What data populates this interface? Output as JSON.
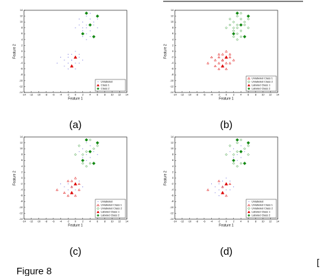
{
  "caption": "Figure 8",
  "side_mark": "[",
  "chart_data": [
    {
      "type": "scatter",
      "label": "(a)",
      "xlabel": "Feature 1",
      "ylabel": "Feature 2",
      "xlim": [
        -14,
        14
      ],
      "ylim": [
        -14,
        14
      ],
      "xticks": [
        -14,
        -12,
        -10,
        -8,
        -6,
        -4,
        -2,
        0,
        2,
        4,
        6,
        8,
        10,
        12,
        14
      ],
      "yticks": [
        -14,
        -12,
        -10,
        -8,
        -6,
        -4,
        -2,
        0,
        2,
        4,
        6,
        8,
        10,
        12,
        14
      ],
      "legend": "lower right",
      "series": [
        {
          "name": "Unlabeled",
          "color": "#3333cc",
          "marker": "dot",
          "filled": true,
          "x": [
            -1,
            -2,
            0,
            -3,
            1,
            -1,
            -2,
            -4,
            0,
            2,
            -1,
            -3,
            1,
            -2,
            0,
            -1,
            -5,
            1,
            -2,
            0,
            3,
            2,
            4,
            1,
            5,
            3,
            2,
            4,
            3,
            6,
            1,
            4,
            2,
            5,
            3,
            4,
            2,
            6,
            3,
            0
          ],
          "y": [
            -3,
            -2,
            -4,
            -3,
            -1,
            -5,
            -4,
            -2,
            -2,
            -3,
            -1,
            -5,
            -4,
            -6,
            0,
            -3,
            -4,
            -2,
            -1,
            -6,
            8,
            10,
            7,
            9,
            9,
            6,
            7,
            11,
            12,
            8,
            11,
            5,
            8,
            10,
            9,
            13,
            5,
            11,
            4,
            8
          ]
        },
        {
          "name": "Class 1",
          "color": "#dd0000",
          "marker": "triangle",
          "filled": true,
          "x": [
            0,
            -1
          ],
          "y": [
            -2,
            -5
          ]
        },
        {
          "name": "Class 2",
          "color": "#118811",
          "marker": "diamond",
          "filled": true,
          "x": [
            3,
            4,
            6,
            2,
            5
          ],
          "y": [
            13,
            9,
            12,
            6,
            5
          ]
        }
      ]
    },
    {
      "type": "scatter",
      "label": "(b)",
      "xlabel": "Feature 1",
      "ylabel": "Feature 2",
      "xlim": [
        -14,
        14
      ],
      "ylim": [
        -14,
        14
      ],
      "xticks": [
        -14,
        -12,
        -10,
        -8,
        -6,
        -4,
        -2,
        0,
        2,
        4,
        6,
        8,
        10,
        12,
        14
      ],
      "yticks": [
        -14,
        -12,
        -10,
        -8,
        -6,
        -4,
        -2,
        0,
        2,
        4,
        6,
        8,
        10,
        12,
        14
      ],
      "legend": "lower right",
      "series": [
        {
          "name": "Unlabeled Class 1",
          "color": "#dd0000",
          "marker": "triangle",
          "filled": false,
          "x": [
            -1,
            -2,
            0,
            -3,
            1,
            -1,
            -2,
            -4,
            0,
            2,
            -1,
            -3,
            1,
            -2,
            0,
            -1,
            -5,
            1,
            -2,
            0
          ],
          "y": [
            -3,
            -2,
            -4,
            -3,
            -1,
            -5,
            -4,
            -2,
            -2,
            -3,
            -1,
            -5,
            -4,
            -6,
            0,
            -3,
            -4,
            -2,
            -1,
            -6
          ]
        },
        {
          "name": "Unlabeled Class 2",
          "color": "#118811",
          "marker": "diamond",
          "filled": false,
          "x": [
            3,
            2,
            4,
            1,
            5,
            3,
            2,
            4,
            3,
            6,
            1,
            4,
            2,
            5,
            3,
            4,
            2,
            6,
            3,
            0
          ],
          "y": [
            8,
            10,
            7,
            9,
            9,
            6,
            7,
            11,
            12,
            8,
            11,
            5,
            8,
            10,
            9,
            13,
            5,
            11,
            4,
            8
          ]
        },
        {
          "name": "Labeled Class 1",
          "color": "#dd0000",
          "marker": "triangle",
          "filled": true,
          "x": [
            0,
            -1
          ],
          "y": [
            -2,
            -5
          ]
        },
        {
          "name": "Labeled Class 2",
          "color": "#118811",
          "marker": "diamond",
          "filled": true,
          "x": [
            3,
            4,
            6,
            2,
            5
          ],
          "y": [
            13,
            9,
            12,
            6,
            5
          ]
        }
      ]
    },
    {
      "type": "scatter",
      "label": "(c)",
      "xlabel": "Feature 1",
      "ylabel": "Feature 2",
      "xlim": [
        -14,
        14
      ],
      "ylim": [
        -14,
        14
      ],
      "xticks": [
        -14,
        -12,
        -10,
        -8,
        -6,
        -4,
        -2,
        0,
        2,
        4,
        6,
        8,
        10,
        12,
        14
      ],
      "yticks": [
        -14,
        -12,
        -10,
        -8,
        -6,
        -4,
        -2,
        0,
        2,
        4,
        6,
        8,
        10,
        12,
        14
      ],
      "legend": "lower right",
      "series": [
        {
          "name": "Unlabeled",
          "color": "#3333cc",
          "marker": "dot",
          "filled": true,
          "x": [
            -1,
            -2,
            0,
            -3,
            1,
            -1,
            -2,
            -4,
            0,
            2,
            3,
            2,
            4,
            1,
            5,
            3,
            2,
            4,
            3,
            6
          ],
          "y": [
            -3,
            -2,
            -4,
            -3,
            -1,
            -5,
            -4,
            -2,
            -2,
            -3,
            8,
            10,
            7,
            9,
            9,
            6,
            7,
            11,
            12,
            8
          ]
        },
        {
          "name": "Unlabeled Class 1",
          "color": "#dd0000",
          "marker": "triangle",
          "filled": false,
          "x": [
            -1,
            -3,
            1,
            -2,
            0,
            -1,
            -5,
            1,
            -2,
            0
          ],
          "y": [
            -1,
            -5,
            -4,
            -6,
            0,
            -3,
            -4,
            -2,
            -1,
            -6
          ]
        },
        {
          "name": "Unlabeled Class 2",
          "color": "#118811",
          "marker": "diamond",
          "filled": false,
          "x": [
            1,
            4,
            2,
            5,
            3,
            4,
            2,
            6,
            3,
            0
          ],
          "y": [
            11,
            5,
            8,
            10,
            9,
            13,
            5,
            11,
            4,
            8
          ]
        },
        {
          "name": "Labeled Class 1",
          "color": "#dd0000",
          "marker": "triangle",
          "filled": true,
          "x": [
            0,
            -1
          ],
          "y": [
            -2,
            -5
          ]
        },
        {
          "name": "Labeled Class 2",
          "color": "#118811",
          "marker": "diamond",
          "filled": true,
          "x": [
            3,
            4,
            6,
            2,
            5
          ],
          "y": [
            13,
            9,
            12,
            6,
            5
          ]
        }
      ]
    },
    {
      "type": "scatter",
      "label": "(d)",
      "xlabel": "Feature 1",
      "ylabel": "Feature 2",
      "xlim": [
        -14,
        14
      ],
      "ylim": [
        -14,
        14
      ],
      "xticks": [
        -14,
        -12,
        -10,
        -8,
        -6,
        -4,
        -2,
        0,
        2,
        4,
        6,
        8,
        10,
        12,
        14
      ],
      "yticks": [
        -14,
        -12,
        -10,
        -8,
        -6,
        -4,
        -2,
        0,
        2,
        4,
        6,
        8,
        10,
        12,
        14
      ],
      "legend": "lower right",
      "series": [
        {
          "name": "Unlabeled",
          "color": "#3333cc",
          "marker": "dot",
          "filled": true,
          "x": [
            -1,
            -2,
            0,
            -3,
            1,
            -1,
            -2,
            -4,
            0,
            2,
            -1,
            -3,
            1,
            -2,
            0,
            3,
            2,
            4,
            1,
            5,
            3,
            2,
            4
          ],
          "y": [
            -3,
            -2,
            -4,
            -3,
            -1,
            -5,
            -4,
            -2,
            -2,
            -3,
            -1,
            -5,
            -4,
            -6,
            0,
            8,
            10,
            7,
            9,
            9,
            6,
            7,
            11
          ]
        },
        {
          "name": "Unlabeled Class 1",
          "color": "#dd0000",
          "marker": "triangle",
          "filled": false,
          "x": [
            -1,
            -5,
            1,
            -2,
            0
          ],
          "y": [
            -3,
            -4,
            -2,
            -1,
            -6
          ]
        },
        {
          "name": "Unlabeled Class 2",
          "color": "#118811",
          "marker": "diamond",
          "filled": false,
          "x": [
            3,
            6,
            1,
            4,
            2,
            5,
            3,
            4,
            2,
            6,
            3,
            0
          ],
          "y": [
            12,
            8,
            11,
            5,
            8,
            10,
            9,
            13,
            5,
            11,
            4,
            8
          ]
        },
        {
          "name": "Labeled Class 1",
          "color": "#dd0000",
          "marker": "triangle",
          "filled": true,
          "x": [
            0,
            -1
          ],
          "y": [
            -2,
            -5
          ]
        },
        {
          "name": "Labeled Class 2",
          "color": "#118811",
          "marker": "diamond",
          "filled": true,
          "x": [
            3,
            4,
            6,
            2,
            5
          ],
          "y": [
            13,
            9,
            12,
            6,
            5
          ]
        }
      ]
    }
  ]
}
